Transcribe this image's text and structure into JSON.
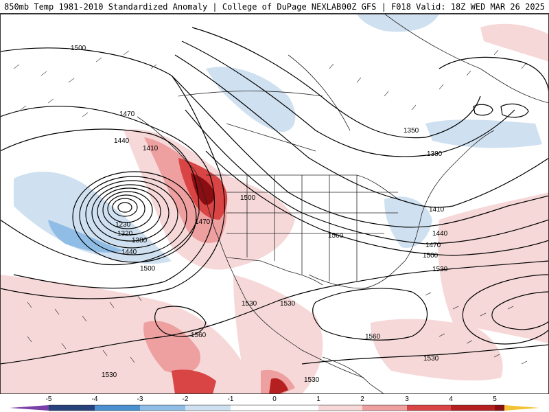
{
  "header": {
    "left_title": "850mb Temp 1981-2010 Standardized Anomaly | College of DuPage NEXLAB",
    "right_title": "00Z GFS | F018 Valid: 18Z WED MAR 26 2025"
  },
  "contour_labels": [
    {
      "id": "l1500a",
      "text": "1500"
    },
    {
      "id": "l1470a",
      "text": "1470"
    },
    {
      "id": "l1440a",
      "text": "1440"
    },
    {
      "id": "l1410a",
      "text": "1410"
    },
    {
      "id": "l1500b",
      "text": "1500"
    },
    {
      "id": "l1470b",
      "text": "1470"
    },
    {
      "id": "l1230",
      "text": "1230"
    },
    {
      "id": "l1320",
      "text": "1320"
    },
    {
      "id": "l1380",
      "text": "1380"
    },
    {
      "id": "l1440b",
      "text": "1440"
    },
    {
      "id": "l1500c",
      "text": "1500"
    },
    {
      "id": "l1350",
      "text": "1350"
    },
    {
      "id": "l1380b",
      "text": "1380"
    },
    {
      "id": "l1410b",
      "text": "1410"
    },
    {
      "id": "l1440c",
      "text": "1440"
    },
    {
      "id": "l1470c",
      "text": "1470"
    },
    {
      "id": "l1500d",
      "text": "1500"
    },
    {
      "id": "l1530a",
      "text": "1530"
    },
    {
      "id": "l1560a",
      "text": "1560"
    },
    {
      "id": "l1530b",
      "text": "1530"
    },
    {
      "id": "l1530c",
      "text": "1530"
    },
    {
      "id": "l1560b",
      "text": "1560"
    },
    {
      "id": "l1560c",
      "text": "1560"
    },
    {
      "id": "l1530d",
      "text": "1530"
    },
    {
      "id": "l1530e",
      "text": "1530"
    },
    {
      "id": "l1530f",
      "text": "1530"
    }
  ],
  "colorbar": {
    "ticks": [
      "-5",
      "-4",
      "-3",
      "-2",
      "-1",
      "0",
      "1",
      "2",
      "3",
      "4",
      "5"
    ],
    "colors": {
      "m5": "#7a3fa8",
      "m4": "#27427a",
      "m3": "#4a8fd0",
      "m2": "#8fbde6",
      "m1": "#cfe0f0",
      "p1": "#f6d8d8",
      "p2": "#ee9f9f",
      "p3": "#d94444",
      "p4": "#b51f1f",
      "p5": "#8a0d12",
      "p6": "#f2c230"
    }
  }
}
